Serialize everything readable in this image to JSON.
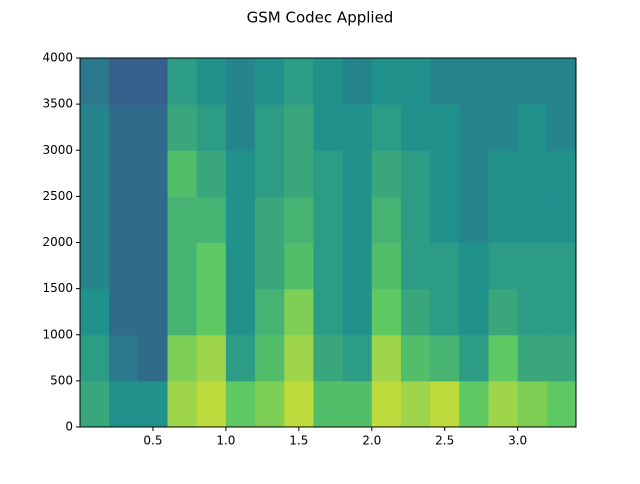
{
  "chart_data": {
    "type": "heatmap",
    "title": "GSM Codec Applied",
    "colormap": "viridis",
    "xlim": [
      0,
      3.4
    ],
    "ylim": [
      0,
      4000
    ],
    "xticks": [
      0.5,
      {
        "value": 1,
        "label": "1.0"
      },
      1.5,
      {
        "value": 2,
        "label": "2.0"
      },
      2.5,
      {
        "value": 3,
        "label": "3.0"
      }
    ],
    "yticks": [
      0,
      500,
      1000,
      1500,
      2000,
      2500,
      3000,
      3500,
      4000
    ],
    "x": [
      0.1,
      0.3,
      0.5,
      0.7,
      0.9,
      1.1,
      1.3,
      1.5,
      1.7,
      1.9,
      2.1,
      2.3,
      2.5,
      2.7,
      2.9,
      3.1,
      3.3
    ],
    "y": [
      250,
      750,
      1250,
      1750,
      2250,
      2750,
      3250,
      3750
    ],
    "z": [
      [
        0.6,
        0.5,
        0.5,
        0.85,
        0.9,
        0.75,
        0.8,
        0.9,
        0.7,
        0.7,
        0.9,
        0.85,
        0.9,
        0.75,
        0.85,
        0.8,
        0.75
      ],
      [
        0.55,
        0.4,
        0.35,
        0.8,
        0.85,
        0.55,
        0.7,
        0.85,
        0.6,
        0.55,
        0.85,
        0.7,
        0.65,
        0.55,
        0.75,
        0.6,
        0.6
      ],
      [
        0.5,
        0.35,
        0.35,
        0.65,
        0.75,
        0.5,
        0.65,
        0.8,
        0.55,
        0.5,
        0.75,
        0.6,
        0.55,
        0.5,
        0.6,
        0.55,
        0.55
      ],
      [
        0.45,
        0.35,
        0.35,
        0.65,
        0.75,
        0.5,
        0.6,
        0.7,
        0.55,
        0.5,
        0.7,
        0.55,
        0.55,
        0.5,
        0.55,
        0.55,
        0.55
      ],
      [
        0.45,
        0.35,
        0.35,
        0.65,
        0.65,
        0.5,
        0.6,
        0.65,
        0.55,
        0.5,
        0.65,
        0.55,
        0.5,
        0.45,
        0.5,
        0.5,
        0.5
      ],
      [
        0.45,
        0.35,
        0.35,
        0.7,
        0.6,
        0.5,
        0.55,
        0.6,
        0.55,
        0.5,
        0.6,
        0.55,
        0.5,
        0.45,
        0.5,
        0.5,
        0.5
      ],
      [
        0.45,
        0.35,
        0.35,
        0.6,
        0.55,
        0.45,
        0.55,
        0.6,
        0.5,
        0.5,
        0.55,
        0.5,
        0.5,
        0.45,
        0.45,
        0.5,
        0.45
      ],
      [
        0.4,
        0.3,
        0.3,
        0.55,
        0.5,
        0.45,
        0.5,
        0.55,
        0.5,
        0.45,
        0.5,
        0.5,
        0.45,
        0.45,
        0.45,
        0.45,
        0.45
      ]
    ]
  }
}
